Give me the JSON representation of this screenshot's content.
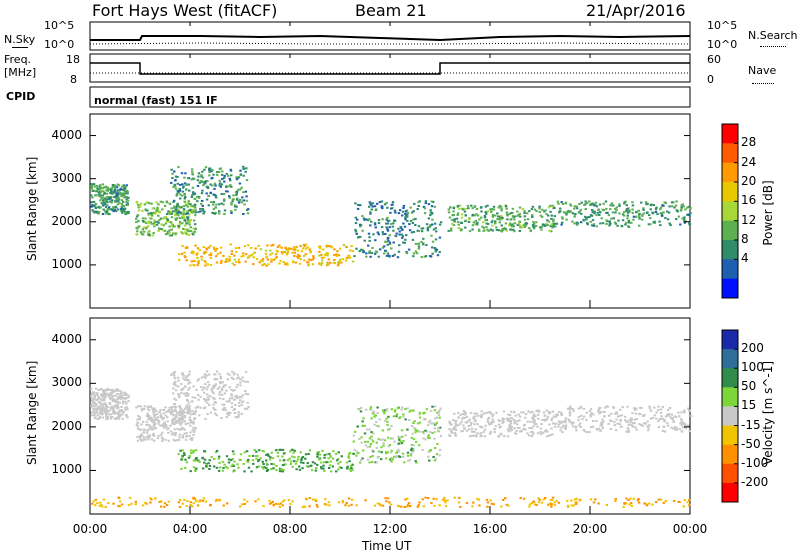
{
  "header": {
    "radar": "Fort Hays West (fitACF)",
    "beam": "Beam 21",
    "date": "21/Apr/2016"
  },
  "panels": {
    "nsky": {
      "label": "N.Sky",
      "right_label": "N.Search",
      "ticks_left": [
        "10^5",
        "10^0"
      ],
      "ticks_right": [
        "10^5",
        "10^0"
      ]
    },
    "freq": {
      "label_line1": "Freq.",
      "label_line2": "[MHz]",
      "right_label": "Nave",
      "ticks_left": [
        "18",
        "8"
      ],
      "ticks_right": [
        "60",
        "0"
      ]
    },
    "cpid": {
      "label": "CPID",
      "value": "normal (fast) 151 IF"
    }
  },
  "chart_data": [
    {
      "type": "heatmap",
      "title": "",
      "xlabel": "",
      "ylabel": "Slant Range [km]",
      "xlim": [
        0,
        24
      ],
      "ylim": [
        0,
        4500
      ],
      "y_ticks": [
        1000,
        2000,
        3000,
        4000
      ],
      "colorbar": {
        "label": "Power [dB]",
        "ticks": [
          28,
          24,
          20,
          16,
          12,
          8,
          4
        ],
        "colors": [
          "#ff0000",
          "#ff5a00",
          "#ff9a00",
          "#e8c800",
          "#a8d838",
          "#5cb050",
          "#2f8c6a",
          "#1e5fb0",
          "#0010ff"
        ]
      },
      "regions": [
        {
          "t_start": 0.0,
          "t_end": 1.5,
          "r_start": 2200,
          "r_end": 2900,
          "power_db": 9
        },
        {
          "t_start": 1.8,
          "t_end": 4.2,
          "r_start": 1700,
          "r_end": 2500,
          "power_db": 12
        },
        {
          "t_start": 3.5,
          "t_end": 10.5,
          "r_start": 1000,
          "r_end": 1500,
          "power_db": 20
        },
        {
          "t_start": 3.2,
          "t_end": 6.3,
          "r_start": 2200,
          "r_end": 3300,
          "power_db": 8
        },
        {
          "t_start": 10.5,
          "t_end": 14.0,
          "r_start": 1200,
          "r_end": 2500,
          "power_db": 7
        },
        {
          "t_start": 14.3,
          "t_end": 18.5,
          "r_start": 1800,
          "r_end": 2400,
          "power_db": 10
        },
        {
          "t_start": 18.5,
          "t_end": 24.0,
          "r_start": 1900,
          "r_end": 2500,
          "power_db": 9
        }
      ]
    },
    {
      "type": "heatmap",
      "title": "",
      "xlabel": "Time UT",
      "ylabel": "Slant Range [km]",
      "xlim": [
        0,
        24
      ],
      "ylim": [
        0,
        4500
      ],
      "x_ticks": [
        "00:00",
        "04:00",
        "08:00",
        "12:00",
        "16:00",
        "20:00",
        "00:00"
      ],
      "y_ticks": [
        1000,
        2000,
        3000,
        4000
      ],
      "colorbar": {
        "label": "Velocity [m s^-1]",
        "ticks": [
          200,
          100,
          50,
          15,
          -15,
          -50,
          -100,
          -200
        ],
        "colors": [
          "#1a2aa8",
          "#2e6e9a",
          "#2f8c4a",
          "#7cd63a",
          "#c8c8c8",
          "#f2c400",
          "#ff9000",
          "#ff5000",
          "#ff0000"
        ]
      },
      "regions": [
        {
          "t_start": 0.0,
          "t_end": 1.5,
          "r_start": 2200,
          "r_end": 2900,
          "velocity": 0
        },
        {
          "t_start": 1.8,
          "t_end": 4.2,
          "r_start": 1700,
          "r_end": 2500,
          "velocity": 0
        },
        {
          "t_start": 3.5,
          "t_end": 10.5,
          "r_start": 1000,
          "r_end": 1500,
          "velocity": 30
        },
        {
          "t_start": 3.2,
          "t_end": 6.3,
          "r_start": 2200,
          "r_end": 3300,
          "velocity": 0
        },
        {
          "t_start": 10.5,
          "t_end": 14.0,
          "r_start": 1200,
          "r_end": 2500,
          "velocity": 20
        },
        {
          "t_start": 14.3,
          "t_end": 18.5,
          "r_start": 1800,
          "r_end": 2400,
          "velocity": 0
        },
        {
          "t_start": 18.5,
          "t_end": 24.0,
          "r_start": 1900,
          "r_end": 2500,
          "velocity": 0
        },
        {
          "t_start": 0.0,
          "t_end": 24.0,
          "r_start": 180,
          "r_end": 400,
          "velocity": -30
        }
      ]
    }
  ]
}
